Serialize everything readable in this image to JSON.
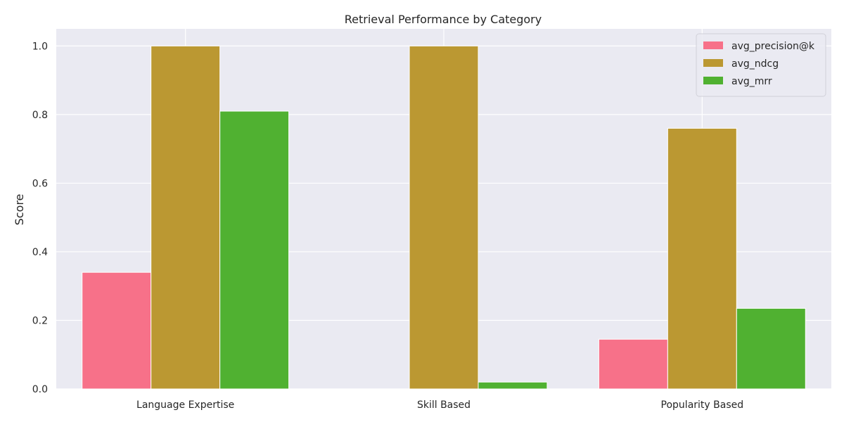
{
  "chart_data": {
    "type": "bar",
    "title": "Retrieval Performance by Category",
    "xlabel": "",
    "ylabel": "Score",
    "categories": [
      "Language Expertise",
      "Skill Based",
      "Popularity Based"
    ],
    "series": [
      {
        "name": "avg_precision@k",
        "color": "#f77189",
        "values": [
          0.34,
          0.0,
          0.145
        ]
      },
      {
        "name": "avg_ndcg",
        "color": "#bb9832",
        "values": [
          1.0,
          1.0,
          0.76
        ]
      },
      {
        "name": "avg_mrr",
        "color": "#50b131",
        "values": [
          0.81,
          0.02,
          0.235
        ]
      }
    ],
    "ylim": [
      0,
      1.05
    ],
    "yticks": [
      0.0,
      0.2,
      0.4,
      0.6,
      0.8,
      1.0
    ],
    "ytick_labels": [
      "0.0",
      "0.2",
      "0.4",
      "0.6",
      "0.8",
      "1.0"
    ],
    "grid": true,
    "background": "#eaeaf2",
    "legend_position": "top-right"
  }
}
